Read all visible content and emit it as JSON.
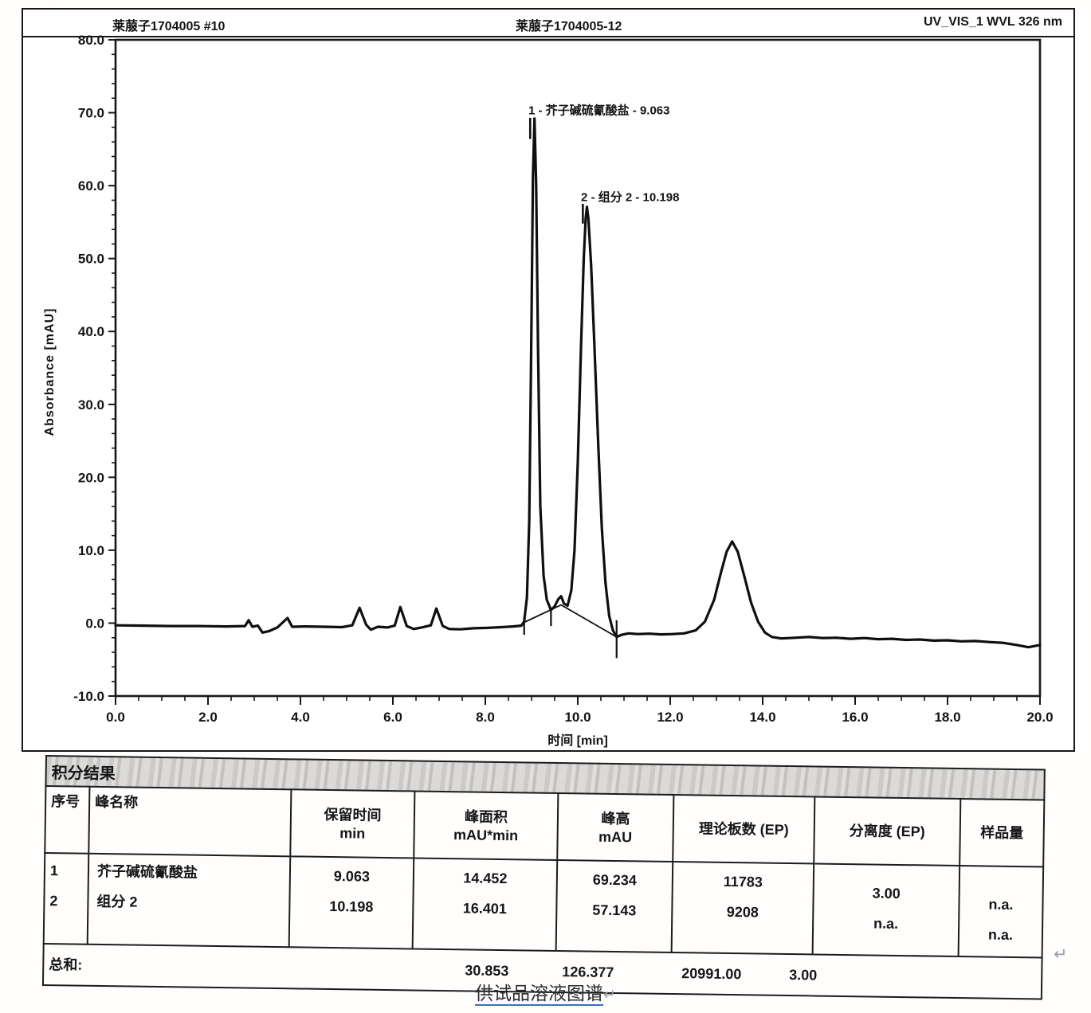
{
  "page": {
    "return_mark_top": "↵",
    "return_mark_bottom": "↵",
    "caption": "供试品溶液图谱",
    "caption_return_mark": "↵"
  },
  "header": {
    "left": "莱菔子1704005 #10",
    "center": "莱菔子1704005-12",
    "right": "UV_VIS_1 WVL 326 nm"
  },
  "chart_data": {
    "type": "line",
    "title": "",
    "xlabel": "时间 [min]",
    "ylabel": "Absorbance [mAU]",
    "xlim": [
      0,
      20
    ],
    "ylim": [
      -10,
      80
    ],
    "x_major_step": 2,
    "x_minor_step": 0.5,
    "y_major_step": 10,
    "y_minor_step": 2,
    "x_tick_labels": [
      "0.0",
      "2.0",
      "4.0",
      "6.0",
      "8.0",
      "10.0",
      "12.0",
      "14.0",
      "16.0",
      "18.0",
      "20.0"
    ],
    "y_tick_labels": [
      "80.0",
      "70.0",
      "60.0",
      "50.0",
      "40.0",
      "30.0",
      "20.0",
      "10.0",
      "0.0",
      "-10.0"
    ],
    "grid": false,
    "legend": "none",
    "peaks": [
      {
        "label": "1 - 芥子碱硫氰酸盐 - 9.063",
        "rt": 9.063,
        "height_mau": 69.234,
        "label_x": 8.93,
        "label_y": 69.8,
        "marker": [
          8.97,
          69.3,
          66.4
        ]
      },
      {
        "label": "2 - 组分 2 - 10.198",
        "rt": 10.198,
        "height_mau": 57.143,
        "label_x": 10.07,
        "label_y": 57.9,
        "marker": [
          10.11,
          57.5,
          54.8
        ]
      }
    ],
    "integration_baseline": [
      [
        8.84,
        0.1
      ],
      [
        9.64,
        2.5
      ],
      [
        10.84,
        -1.9
      ]
    ],
    "integration_ticks": [
      [
        8.84,
        0.6,
        -1.6
      ],
      [
        9.42,
        2.1,
        -0.4
      ],
      [
        10.84,
        0.4,
        -4.8
      ]
    ],
    "series": [
      {
        "name": "UV_VIS_1 WVL 326 nm",
        "points": [
          [
            0,
            -0.3
          ],
          [
            0.6,
            -0.35
          ],
          [
            1.2,
            -0.4
          ],
          [
            1.8,
            -0.4
          ],
          [
            2.4,
            -0.45
          ],
          [
            2.8,
            -0.4
          ],
          [
            2.88,
            0.4
          ],
          [
            2.96,
            -0.5
          ],
          [
            3.08,
            -0.35
          ],
          [
            3.18,
            -1.3
          ],
          [
            3.32,
            -1.1
          ],
          [
            3.5,
            -0.6
          ],
          [
            3.72,
            0.7
          ],
          [
            3.82,
            -0.5
          ],
          [
            4.1,
            -0.45
          ],
          [
            4.5,
            -0.5
          ],
          [
            4.9,
            -0.55
          ],
          [
            5.12,
            -0.3
          ],
          [
            5.28,
            2.1
          ],
          [
            5.42,
            -0.2
          ],
          [
            5.52,
            -0.9
          ],
          [
            5.68,
            -0.5
          ],
          [
            5.88,
            -0.6
          ],
          [
            6.04,
            -0.35
          ],
          [
            6.16,
            2.2
          ],
          [
            6.3,
            -0.4
          ],
          [
            6.45,
            -0.8
          ],
          [
            6.62,
            -0.6
          ],
          [
            6.82,
            -0.3
          ],
          [
            6.94,
            2.0
          ],
          [
            7.08,
            -0.4
          ],
          [
            7.22,
            -0.8
          ],
          [
            7.45,
            -0.85
          ],
          [
            7.75,
            -0.7
          ],
          [
            8.05,
            -0.65
          ],
          [
            8.35,
            -0.55
          ],
          [
            8.6,
            -0.45
          ],
          [
            8.78,
            -0.35
          ],
          [
            8.84,
            0.2
          ],
          [
            8.9,
            3.5
          ],
          [
            8.95,
            14
          ],
          [
            9.0,
            42
          ],
          [
            9.03,
            61
          ],
          [
            9.063,
            69.2
          ],
          [
            9.1,
            60
          ],
          [
            9.14,
            38
          ],
          [
            9.19,
            16
          ],
          [
            9.26,
            6.5
          ],
          [
            9.33,
            3.2
          ],
          [
            9.42,
            1.8
          ],
          [
            9.5,
            2.3
          ],
          [
            9.58,
            3.3
          ],
          [
            9.64,
            3.7
          ],
          [
            9.7,
            2.7
          ],
          [
            9.78,
            2.4
          ],
          [
            9.86,
            4.5
          ],
          [
            9.93,
            10
          ],
          [
            10.0,
            22
          ],
          [
            10.07,
            38
          ],
          [
            10.13,
            50
          ],
          [
            10.17,
            55.5
          ],
          [
            10.198,
            57.1
          ],
          [
            10.23,
            55.5
          ],
          [
            10.29,
            49
          ],
          [
            10.36,
            38
          ],
          [
            10.44,
            25
          ],
          [
            10.52,
            13
          ],
          [
            10.6,
            5.5
          ],
          [
            10.68,
            1
          ],
          [
            10.76,
            -1
          ],
          [
            10.84,
            -1.9
          ],
          [
            10.95,
            -1.6
          ],
          [
            11.1,
            -1.4
          ],
          [
            11.3,
            -1.5
          ],
          [
            11.55,
            -1.45
          ],
          [
            11.8,
            -1.55
          ],
          [
            12.05,
            -1.5
          ],
          [
            12.3,
            -1.4
          ],
          [
            12.55,
            -1.0
          ],
          [
            12.75,
            0.2
          ],
          [
            12.95,
            3.2
          ],
          [
            13.1,
            7.0
          ],
          [
            13.22,
            9.8
          ],
          [
            13.34,
            11.2
          ],
          [
            13.46,
            9.8
          ],
          [
            13.6,
            6.5
          ],
          [
            13.75,
            2.8
          ],
          [
            13.9,
            0.2
          ],
          [
            14.05,
            -1.3
          ],
          [
            14.2,
            -1.9
          ],
          [
            14.4,
            -2.1
          ],
          [
            14.7,
            -2.0
          ],
          [
            15.0,
            -1.9
          ],
          [
            15.3,
            -2.05
          ],
          [
            15.6,
            -2.0
          ],
          [
            15.9,
            -2.15
          ],
          [
            16.2,
            -2.05
          ],
          [
            16.5,
            -2.2
          ],
          [
            16.8,
            -2.15
          ],
          [
            17.1,
            -2.3
          ],
          [
            17.4,
            -2.25
          ],
          [
            17.7,
            -2.4
          ],
          [
            18.0,
            -2.35
          ],
          [
            18.3,
            -2.5
          ],
          [
            18.6,
            -2.45
          ],
          [
            18.9,
            -2.6
          ],
          [
            19.2,
            -2.7
          ],
          [
            19.5,
            -3.0
          ],
          [
            19.75,
            -3.3
          ],
          [
            20,
            -3.0
          ]
        ]
      }
    ]
  },
  "table": {
    "title": "积分结果",
    "columns": [
      {
        "label": "序号",
        "sub": ""
      },
      {
        "label": "峰名称",
        "sub": ""
      },
      {
        "label": "保留时间",
        "sub": "min"
      },
      {
        "label": "峰面积",
        "sub": "mAU*min"
      },
      {
        "label": "峰高",
        "sub": "mAU"
      },
      {
        "label": "理论板数 (EP)",
        "sub": ""
      },
      {
        "label": "分离度 (EP)",
        "sub": ""
      },
      {
        "label": "样品量",
        "sub": ""
      }
    ],
    "rows": [
      {
        "no": "1",
        "name": "芥子碱硫氰酸盐",
        "rt": "9.063",
        "area": "14.452",
        "height": "69.234",
        "plates": "11783",
        "resolution": "3.00",
        "amount": "n.a."
      },
      {
        "no": "2",
        "name": "组分 2",
        "rt": "10.198",
        "area": "16.401",
        "height": "57.143",
        "plates": "9208",
        "resolution": "n.a.",
        "amount": "n.a."
      }
    ],
    "sum_label": "总和:",
    "sum": {
      "area": "30.853",
      "height": "126.377",
      "plates": "20991.00",
      "resolution": "3.00"
    }
  }
}
